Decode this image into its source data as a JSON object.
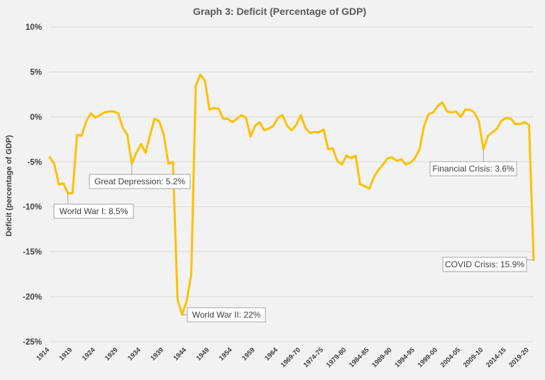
{
  "chart_data": {
    "type": "line",
    "title": "Graph 3: Deficit (Percentage of GDP)",
    "xlabel": "",
    "ylabel": "Deficit (percentage of GDP)",
    "ylim": [
      -25,
      10
    ],
    "yticks": [
      "10%",
      "5%",
      "0%",
      "-5%",
      "-10%",
      "-15%",
      "-20%",
      "-25%"
    ],
    "grid": true,
    "legend": "none",
    "line_color": "#ffc000",
    "xticks": [
      "1914",
      "1919",
      "1924",
      "1929",
      "1934",
      "1939",
      "1944",
      "1949",
      "1954",
      "1959",
      "1964",
      "1969-70",
      "1974-75",
      "1979-80",
      "1984-85",
      "1989-90",
      "1994-95",
      "1999-00",
      "2004-05",
      "2009-10",
      "2014-15",
      "2019-20"
    ],
    "x": [
      1914,
      1915,
      1916,
      1917,
      1918,
      1919,
      1920,
      1921,
      1922,
      1923,
      1924,
      1925,
      1926,
      1927,
      1928,
      1929,
      1930,
      1931,
      1932,
      1933,
      1934,
      1935,
      1936,
      1937,
      1938,
      1939,
      1940,
      1941,
      1942,
      1943,
      1944,
      1945,
      1946,
      1947,
      1948,
      1949,
      1950,
      1951,
      1952,
      1953,
      1954,
      1955,
      1956,
      1957,
      1958,
      1959,
      1960,
      1961,
      1962,
      1963,
      1964,
      1965,
      1966,
      1967,
      1968,
      1969,
      1970,
      1971,
      1972,
      1973,
      1974,
      1975,
      1976,
      1977,
      1978,
      1979,
      1980,
      1981,
      1982,
      1983,
      1984,
      1985,
      1986,
      1987,
      1988,
      1989,
      1990,
      1991,
      1992,
      1993,
      1994,
      1995,
      1996,
      1997,
      1998,
      1999,
      2000,
      2001,
      2002,
      2003,
      2004,
      2005,
      2006,
      2007,
      2008,
      2009,
      2010,
      2011,
      2012,
      2013,
      2014,
      2015,
      2016,
      2017,
      2018,
      2019,
      2020
    ],
    "values": [
      -4.5,
      -5.2,
      -7.5,
      -7.4,
      -8.5,
      -8.5,
      -2.0,
      -2.1,
      -0.5,
      0.4,
      -0.1,
      0.2,
      0.5,
      0.6,
      0.6,
      0.4,
      -1.2,
      -2.0,
      -5.2,
      -4.0,
      -3.0,
      -4.0,
      -2.0,
      -0.2,
      -0.5,
      -2.0,
      -5.2,
      -5.0,
      -20.3,
      -22.0,
      -20.5,
      -17.5,
      3.5,
      4.7,
      4.0,
      0.8,
      1.0,
      0.9,
      -0.2,
      -0.2,
      -0.6,
      -0.2,
      0.2,
      -0.1,
      -2.2,
      -1.0,
      -0.6,
      -1.5,
      -1.3,
      -1.0,
      -0.1,
      0.2,
      -1.0,
      -1.5,
      -0.9,
      0.2,
      -1.2,
      -1.8,
      -1.7,
      -1.7,
      -1.4,
      -3.6,
      -3.5,
      -4.9,
      -5.3,
      -4.3,
      -4.6,
      -4.3,
      -7.5,
      -7.7,
      -8.0,
      -6.7,
      -5.9,
      -5.3,
      -4.6,
      -4.5,
      -4.9,
      -4.7,
      -5.3,
      -5.1,
      -4.6,
      -3.6,
      -1.0,
      0.3,
      0.5,
      1.2,
      1.6,
      0.6,
      0.5,
      0.6,
      0.0,
      0.8,
      0.8,
      0.5,
      -0.5,
      -3.6,
      -2.1,
      -1.7,
      -1.3,
      -0.4,
      -0.1,
      -0.2,
      -0.8,
      -0.8,
      -0.6,
      -0.9,
      -15.9
    ],
    "annotations": [
      {
        "label": "World War I: 8.5%",
        "x": 1918,
        "y": -8.5
      },
      {
        "label": "Great Depression: 5.2%",
        "x": 1932,
        "y": -5.2
      },
      {
        "label": "World War II: 22%",
        "x": 1943,
        "y": -22.0
      },
      {
        "label": "Financial Crisis: 3.6%",
        "x": 2009,
        "y": -3.6
      },
      {
        "label": "COVID Crisis: 15.9%",
        "x": 2020,
        "y": -15.9
      }
    ]
  }
}
